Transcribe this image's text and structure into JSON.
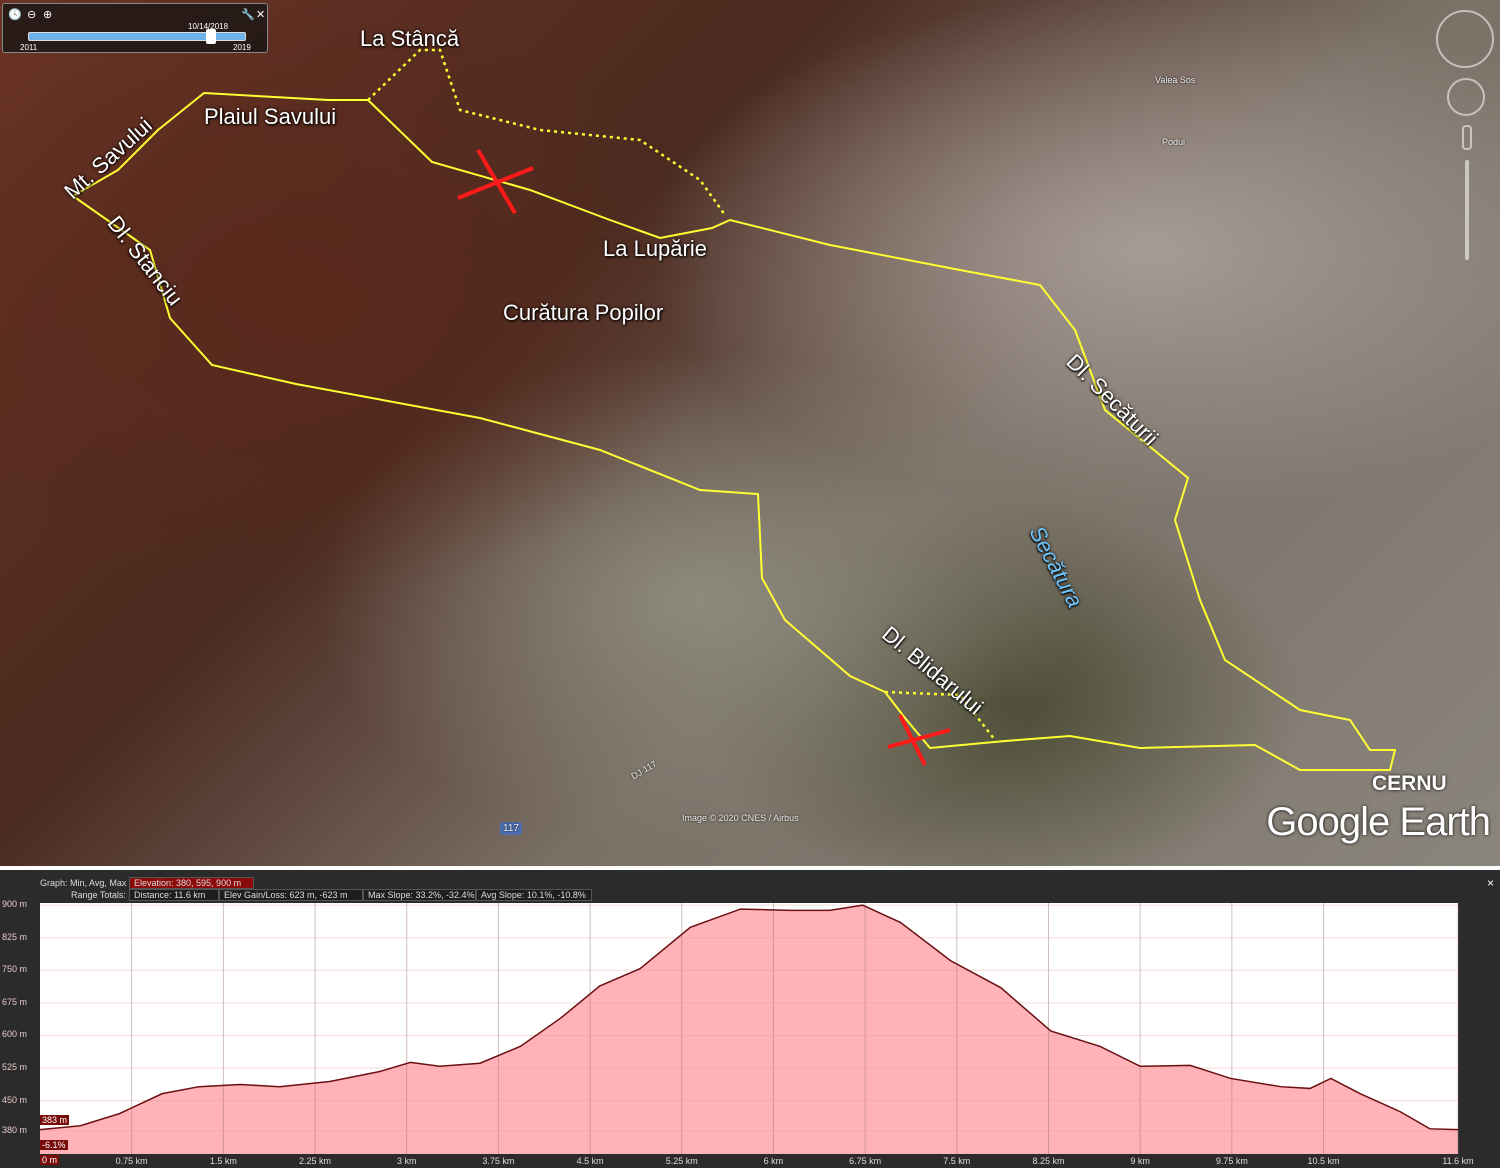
{
  "toolbar": {
    "clock_icon": "clock-icon",
    "zoom_out_icon": "zoom-out-icon",
    "zoom_in_icon": "zoom-in-icon",
    "wrench_icon": "wrench-icon",
    "close_icon": "close-icon",
    "date": "10/14/2018",
    "start_year": "2011",
    "end_year": "2019",
    "position": 0.84
  },
  "map": {
    "labels": [
      "La Stâncă",
      "Plaiul Savului",
      "Mt. Savului",
      "Dl. Stanciu",
      "La Lupărie",
      "Curătura Popilor",
      "Dl. Secăturii",
      "Secătura",
      "Dl. Blidarului",
      "CERNU"
    ],
    "place_labels": [
      "Valea Sos",
      "Podul"
    ],
    "road_labels": [
      "DJ 117",
      "117"
    ],
    "attribution": "Image © 2020 CNES / Airbus",
    "brand": "Google Earth",
    "route_color": "#ffff33",
    "marker_color": "#ff2020",
    "dotted_color": "#ffff33",
    "cross_color": "#ff1a1a"
  },
  "profile": {
    "graph_label": "Graph: Min, Avg, Max",
    "elevation": "Elevation: 380, 595, 900 m",
    "range_label": "Range Totals:",
    "distance": "Distance: 11.6 km",
    "gain_loss": "Elev Gain/Loss: 623 m, -623 m",
    "max_slope": "Max Slope: 33.2%, -32.4%",
    "avg_slope": "Avg Slope: 10.1%, -10.8%",
    "cursor_elev": "383 m",
    "cursor_slope": "-6.1%",
    "cursor_dist": "0 m",
    "close": "×"
  },
  "chart_data": {
    "type": "area",
    "xlabel": "",
    "ylabel": "",
    "xlim": [
      0,
      11.6
    ],
    "ylim": [
      327,
      905
    ],
    "y_ticks": [
      "900 m",
      "825 m",
      "750 m",
      "675 m",
      "600 m",
      "525 m",
      "450 m",
      "380 m"
    ],
    "y_tick_values": [
      900,
      825,
      750,
      675,
      600,
      525,
      450,
      380
    ],
    "x_ticks": [
      "0.75 km",
      "1.5 km",
      "2.25 km",
      "3 km",
      "3.75 km",
      "4.5 km",
      "5.25 km",
      "6 km",
      "6.75 km",
      "7.5 km",
      "8.25 km",
      "9 km",
      "9.75 km",
      "10.5 km",
      "11.6 km"
    ],
    "x_tick_values": [
      0.75,
      1.5,
      2.25,
      3,
      3.75,
      4.5,
      5.25,
      6,
      6.75,
      7.5,
      8.25,
      9,
      9.75,
      10.5,
      11.6
    ],
    "grid": true,
    "fill_color": "#ffb3b8",
    "line_color": "#6b0f12",
    "x": [
      0,
      0.33,
      0.65,
      1.0,
      1.3,
      1.64,
      1.96,
      2.37,
      2.78,
      3.03,
      3.27,
      3.6,
      3.93,
      4.26,
      4.58,
      4.91,
      5.32,
      5.73,
      6.14,
      6.46,
      6.73,
      7.04,
      7.45,
      7.86,
      8.27,
      8.67,
      9.0,
      9.41,
      9.74,
      10.15,
      10.39,
      10.56,
      10.8,
      11.13,
      11.37,
      11.6
    ],
    "y": [
      383,
      392,
      420,
      466,
      482,
      487,
      482,
      494,
      517,
      538,
      529,
      536,
      575,
      640,
      714,
      754,
      849,
      891,
      888,
      888,
      900,
      860,
      772,
      710,
      610,
      575,
      529,
      531,
      501,
      482,
      478,
      501,
      466,
      424,
      385,
      383
    ]
  }
}
